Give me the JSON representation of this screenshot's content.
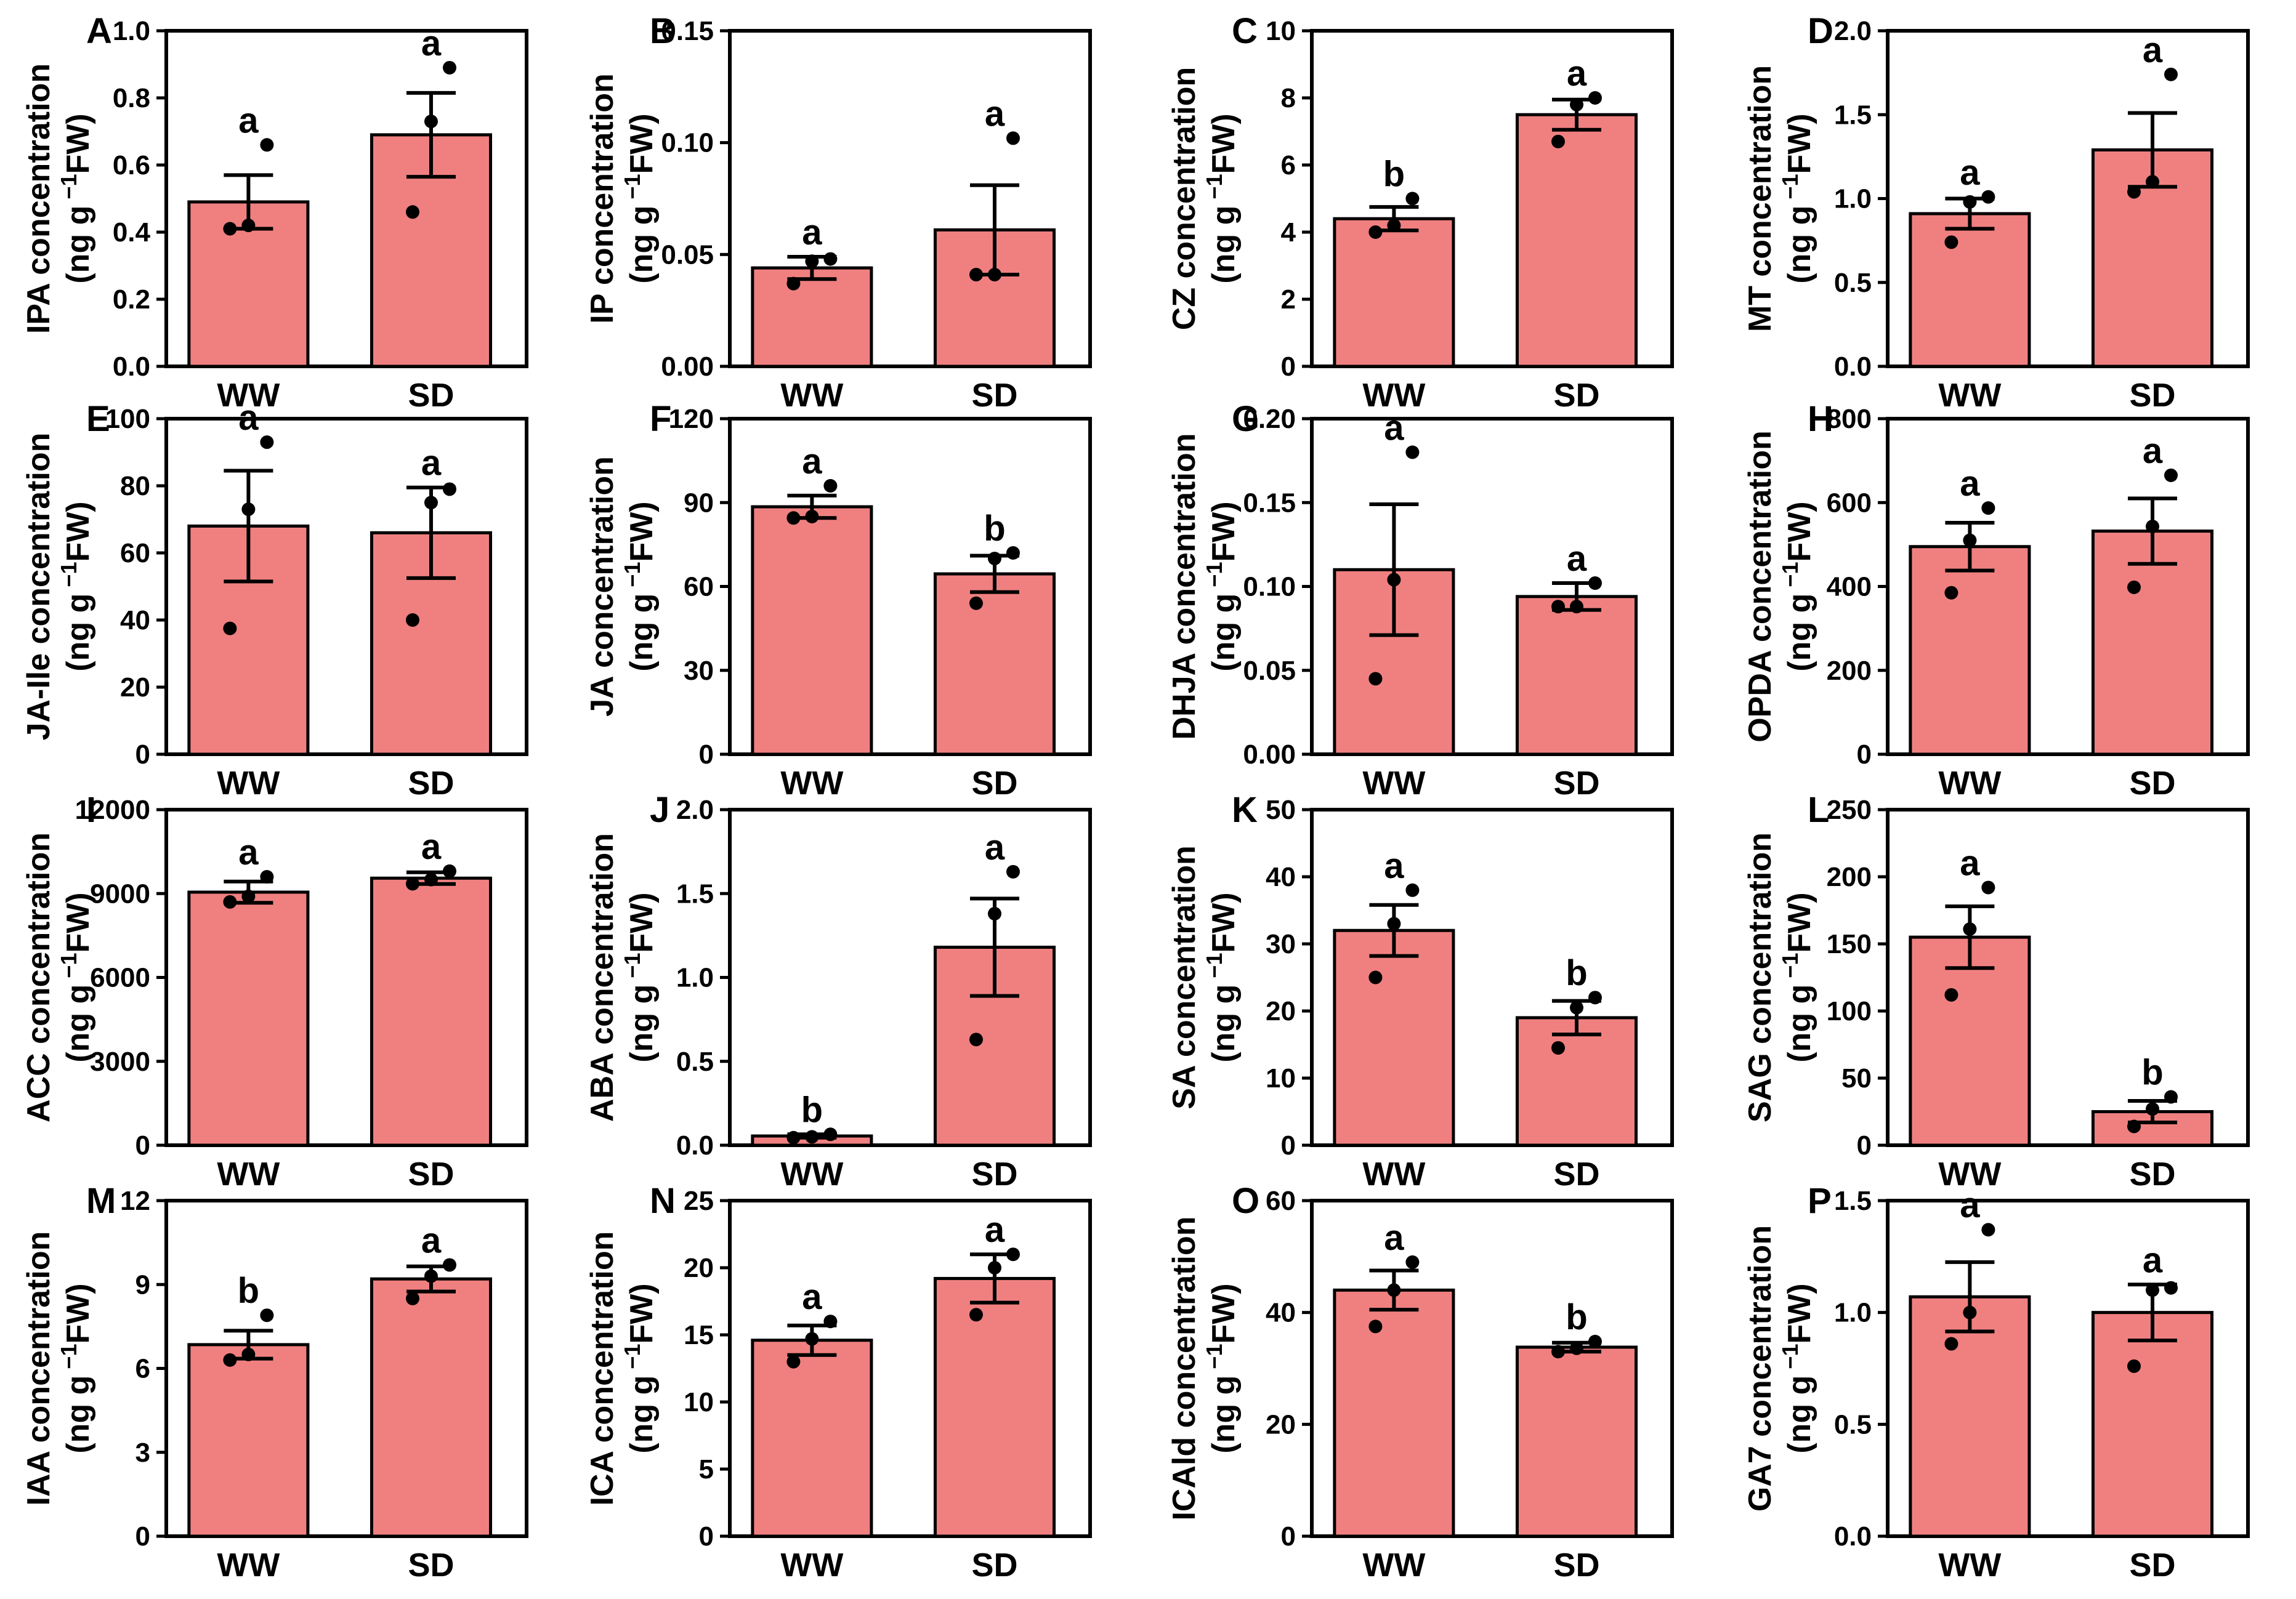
{
  "figure": {
    "ylabel_unit": "(ng g",
    "ylabel_exp": "−1",
    "ylabel_tail": "FW)",
    "bar_color": "#F08080",
    "categories": [
      "WW",
      "SD"
    ]
  },
  "chart_data": [
    {
      "type": "bar",
      "panel": "A",
      "title": "IPA concentration",
      "ylabel": "IPA concentration",
      "ylim": [
        0,
        1.0
      ],
      "yticks": [
        0.0,
        0.2,
        0.4,
        0.6,
        0.8,
        1.0
      ],
      "ytick_labels": [
        "0.0",
        "0.2",
        "0.4",
        "0.6",
        "0.8",
        "1.0"
      ],
      "categories": [
        "WW",
        "SD"
      ],
      "values": [
        0.49,
        0.69
      ],
      "errors": [
        0.08,
        0.125
      ],
      "points": [
        [
          0.41,
          0.42,
          0.66
        ],
        [
          0.46,
          0.73,
          0.89
        ]
      ],
      "significance": [
        "a",
        "a"
      ]
    },
    {
      "type": "bar",
      "panel": "B",
      "title": "IP concentration",
      "ylabel": "IP concentration",
      "ylim": [
        0,
        0.15
      ],
      "yticks": [
        0.0,
        0.05,
        0.1,
        0.15
      ],
      "ytick_labels": [
        "0.00",
        "0.05",
        "0.10",
        "0.15"
      ],
      "categories": [
        "WW",
        "SD"
      ],
      "values": [
        0.044,
        0.061
      ],
      "errors": [
        0.005,
        0.02
      ],
      "points": [
        [
          0.037,
          0.047,
          0.048
        ],
        [
          0.041,
          0.041,
          0.102
        ]
      ],
      "significance": [
        "a",
        "a"
      ]
    },
    {
      "type": "bar",
      "panel": "C",
      "title": "CZ concentration",
      "ylabel": "CZ concentration",
      "ylim": [
        0,
        10
      ],
      "yticks": [
        0,
        2,
        4,
        6,
        8,
        10
      ],
      "ytick_labels": [
        "0",
        "2",
        "4",
        "6",
        "8",
        "10"
      ],
      "categories": [
        "WW",
        "SD"
      ],
      "values": [
        4.4,
        7.5
      ],
      "errors": [
        0.35,
        0.45
      ],
      "points": [
        [
          4.0,
          4.2,
          5.0
        ],
        [
          6.7,
          7.8,
          8.0
        ]
      ],
      "significance": [
        "b",
        "a"
      ]
    },
    {
      "type": "bar",
      "panel": "D",
      "title": "MT concentration",
      "ylabel": "MT concentration",
      "ylim": [
        0,
        2.0
      ],
      "yticks": [
        0.0,
        0.5,
        1.0,
        1.5,
        2.0
      ],
      "ytick_labels": [
        "0.0",
        "0.5",
        "1.0",
        "1.5",
        "2.0"
      ],
      "categories": [
        "WW",
        "SD"
      ],
      "values": [
        0.91,
        1.29
      ],
      "errors": [
        0.09,
        0.22
      ],
      "points": [
        [
          0.74,
          0.98,
          1.01
        ],
        [
          1.04,
          1.1,
          1.74
        ]
      ],
      "significance": [
        "a",
        "a"
      ]
    },
    {
      "type": "bar",
      "panel": "E",
      "title": "JA-Ile concentration",
      "ylabel": "JA-Ile concentration",
      "ylim": [
        0,
        100
      ],
      "yticks": [
        0,
        20,
        40,
        60,
        80,
        100
      ],
      "ytick_labels": [
        "0",
        "20",
        "40",
        "60",
        "80",
        "100"
      ],
      "categories": [
        "WW",
        "SD"
      ],
      "values": [
        68,
        66
      ],
      "errors": [
        16.5,
        13.5
      ],
      "points": [
        [
          37.5,
          73,
          93
        ],
        [
          40,
          75,
          79
        ]
      ],
      "significance": [
        "a",
        "a"
      ]
    },
    {
      "type": "bar",
      "panel": "F",
      "title": "JA concentration",
      "ylabel": "JA concentration",
      "ylim": [
        0,
        120
      ],
      "yticks": [
        0,
        30,
        60,
        90,
        120
      ],
      "ytick_labels": [
        "0",
        "30",
        "60",
        "90",
        "120"
      ],
      "categories": [
        "WW",
        "SD"
      ],
      "values": [
        88.5,
        64.5
      ],
      "errors": [
        4,
        6.5
      ],
      "points": [
        [
          84.5,
          85,
          96
        ],
        [
          54,
          70,
          72
        ]
      ],
      "significance": [
        "a",
        "b"
      ]
    },
    {
      "type": "bar",
      "panel": "G",
      "title": "DHJA concentration",
      "ylabel": "DHJA concentration",
      "ylim": [
        0,
        0.2
      ],
      "yticks": [
        0.0,
        0.05,
        0.1,
        0.15,
        0.2
      ],
      "ytick_labels": [
        "0.00",
        "0.05",
        "0.10",
        "0.15",
        "0.20"
      ],
      "categories": [
        "WW",
        "SD"
      ],
      "values": [
        0.11,
        0.094
      ],
      "errors": [
        0.039,
        0.008
      ],
      "points": [
        [
          0.045,
          0.104,
          0.18
        ],
        [
          0.088,
          0.088,
          0.102
        ]
      ],
      "significance": [
        "a",
        "a"
      ]
    },
    {
      "type": "bar",
      "panel": "H",
      "title": "OPDA concentration",
      "ylabel": "OPDA concentration",
      "ylim": [
        0,
        800
      ],
      "yticks": [
        0,
        200,
        400,
        600,
        800
      ],
      "ytick_labels": [
        "0",
        "200",
        "400",
        "600",
        "800"
      ],
      "categories": [
        "WW",
        "SD"
      ],
      "values": [
        495,
        532
      ],
      "errors": [
        57,
        78
      ],
      "points": [
        [
          385,
          510,
          587
        ],
        [
          398,
          543,
          665
        ]
      ],
      "significance": [
        "a",
        "a"
      ]
    },
    {
      "type": "bar",
      "panel": "I",
      "title": "ACC concentration",
      "ylabel": "ACC concentration",
      "ylim": [
        0,
        12000
      ],
      "yticks": [
        0,
        3000,
        6000,
        9000,
        12000
      ],
      "ytick_labels": [
        "0",
        "3000",
        "6000",
        "9000",
        "12000"
      ],
      "categories": [
        "WW",
        "SD"
      ],
      "values": [
        9050,
        9550
      ],
      "errors": [
        380,
        210
      ],
      "points": [
        [
          8700,
          8900,
          9600
        ],
        [
          9350,
          9500,
          9800
        ]
      ],
      "significance": [
        "a",
        "a"
      ]
    },
    {
      "type": "bar",
      "panel": "J",
      "title": "ABA concentration",
      "ylabel": "ABA concentration",
      "ylim": [
        0,
        2.0
      ],
      "yticks": [
        0.0,
        0.5,
        1.0,
        1.5,
        2.0
      ],
      "ytick_labels": [
        "0.0",
        "0.5",
        "1.0",
        "1.5",
        "2.0"
      ],
      "categories": [
        "WW",
        "SD"
      ],
      "values": [
        0.055,
        1.18
      ],
      "errors": [
        0.01,
        0.29
      ],
      "points": [
        [
          0.045,
          0.05,
          0.065
        ],
        [
          0.63,
          1.38,
          1.63
        ]
      ],
      "significance": [
        "b",
        "a"
      ]
    },
    {
      "type": "bar",
      "panel": "K",
      "title": "SA concentration",
      "ylabel": "SA concentration",
      "ylim": [
        0,
        50
      ],
      "yticks": [
        0,
        10,
        20,
        30,
        40,
        50
      ],
      "ytick_labels": [
        "0",
        "10",
        "20",
        "30",
        "40",
        "50"
      ],
      "categories": [
        "WW",
        "SD"
      ],
      "values": [
        32,
        19
      ],
      "errors": [
        3.8,
        2.5
      ],
      "points": [
        [
          25,
          33,
          38
        ],
        [
          14.5,
          20.5,
          22
        ]
      ],
      "significance": [
        "a",
        "b"
      ]
    },
    {
      "type": "bar",
      "panel": "L",
      "title": "SAG concentration",
      "ylabel": "SAG concentration",
      "ylim": [
        0,
        250
      ],
      "yticks": [
        0,
        50,
        100,
        150,
        200,
        250
      ],
      "ytick_labels": [
        "0",
        "50",
        "100",
        "150",
        "200",
        "250"
      ],
      "categories": [
        "WW",
        "SD"
      ],
      "values": [
        155,
        25
      ],
      "errors": [
        23,
        8
      ],
      "points": [
        [
          112,
          161,
          192
        ],
        [
          14,
          27,
          36
        ]
      ],
      "significance": [
        "a",
        "b"
      ]
    },
    {
      "type": "bar",
      "panel": "M",
      "title": "IAA concentration",
      "ylabel": "IAA concentration",
      "ylim": [
        0,
        12
      ],
      "yticks": [
        0,
        3,
        6,
        9,
        12
      ],
      "ytick_labels": [
        "0",
        "3",
        "6",
        "9",
        "12"
      ],
      "categories": [
        "WW",
        "SD"
      ],
      "values": [
        6.85,
        9.2
      ],
      "errors": [
        0.5,
        0.45
      ],
      "points": [
        [
          6.3,
          6.5,
          7.9
        ],
        [
          8.5,
          9.3,
          9.7
        ]
      ],
      "significance": [
        "b",
        "a"
      ]
    },
    {
      "type": "bar",
      "panel": "N",
      "title": "ICA concentration",
      "ylabel": "ICA concentration",
      "ylim": [
        0,
        25
      ],
      "yticks": [
        0,
        5,
        10,
        15,
        20,
        25
      ],
      "ytick_labels": [
        "0",
        "5",
        "10",
        "15",
        "20",
        "25"
      ],
      "categories": [
        "WW",
        "SD"
      ],
      "values": [
        14.6,
        19.2
      ],
      "errors": [
        1.1,
        1.8
      ],
      "points": [
        [
          13.0,
          14.7,
          16.0
        ],
        [
          16.5,
          20.0,
          21.0
        ]
      ],
      "significance": [
        "a",
        "a"
      ]
    },
    {
      "type": "bar",
      "panel": "O",
      "title": "ICAld concentration",
      "ylabel": "ICAld concentration",
      "ylim": [
        0,
        60
      ],
      "yticks": [
        0,
        20,
        40,
        60
      ],
      "ytick_labels": [
        "0",
        "20",
        "40",
        "60"
      ],
      "categories": [
        "WW",
        "SD"
      ],
      "values": [
        44,
        33.8
      ],
      "errors": [
        3.5,
        0.8
      ],
      "points": [
        [
          37.5,
          44,
          49
        ],
        [
          33,
          33.6,
          34.8
        ]
      ],
      "significance": [
        "a",
        "b"
      ]
    },
    {
      "type": "bar",
      "panel": "P",
      "title": "GA7 concentration",
      "ylabel": "GA7 concentration",
      "ylim": [
        0,
        1.5
      ],
      "yticks": [
        0.0,
        0.5,
        1.0,
        1.5
      ],
      "ytick_labels": [
        "0.0",
        "0.5",
        "1.0",
        "1.5"
      ],
      "categories": [
        "WW",
        "SD"
      ],
      "values": [
        1.07,
        1.0
      ],
      "errors": [
        0.155,
        0.125
      ],
      "points": [
        [
          0.86,
          1.0,
          1.37
        ],
        [
          0.76,
          1.1,
          1.11
        ]
      ],
      "significance": [
        "a",
        "a"
      ]
    }
  ]
}
